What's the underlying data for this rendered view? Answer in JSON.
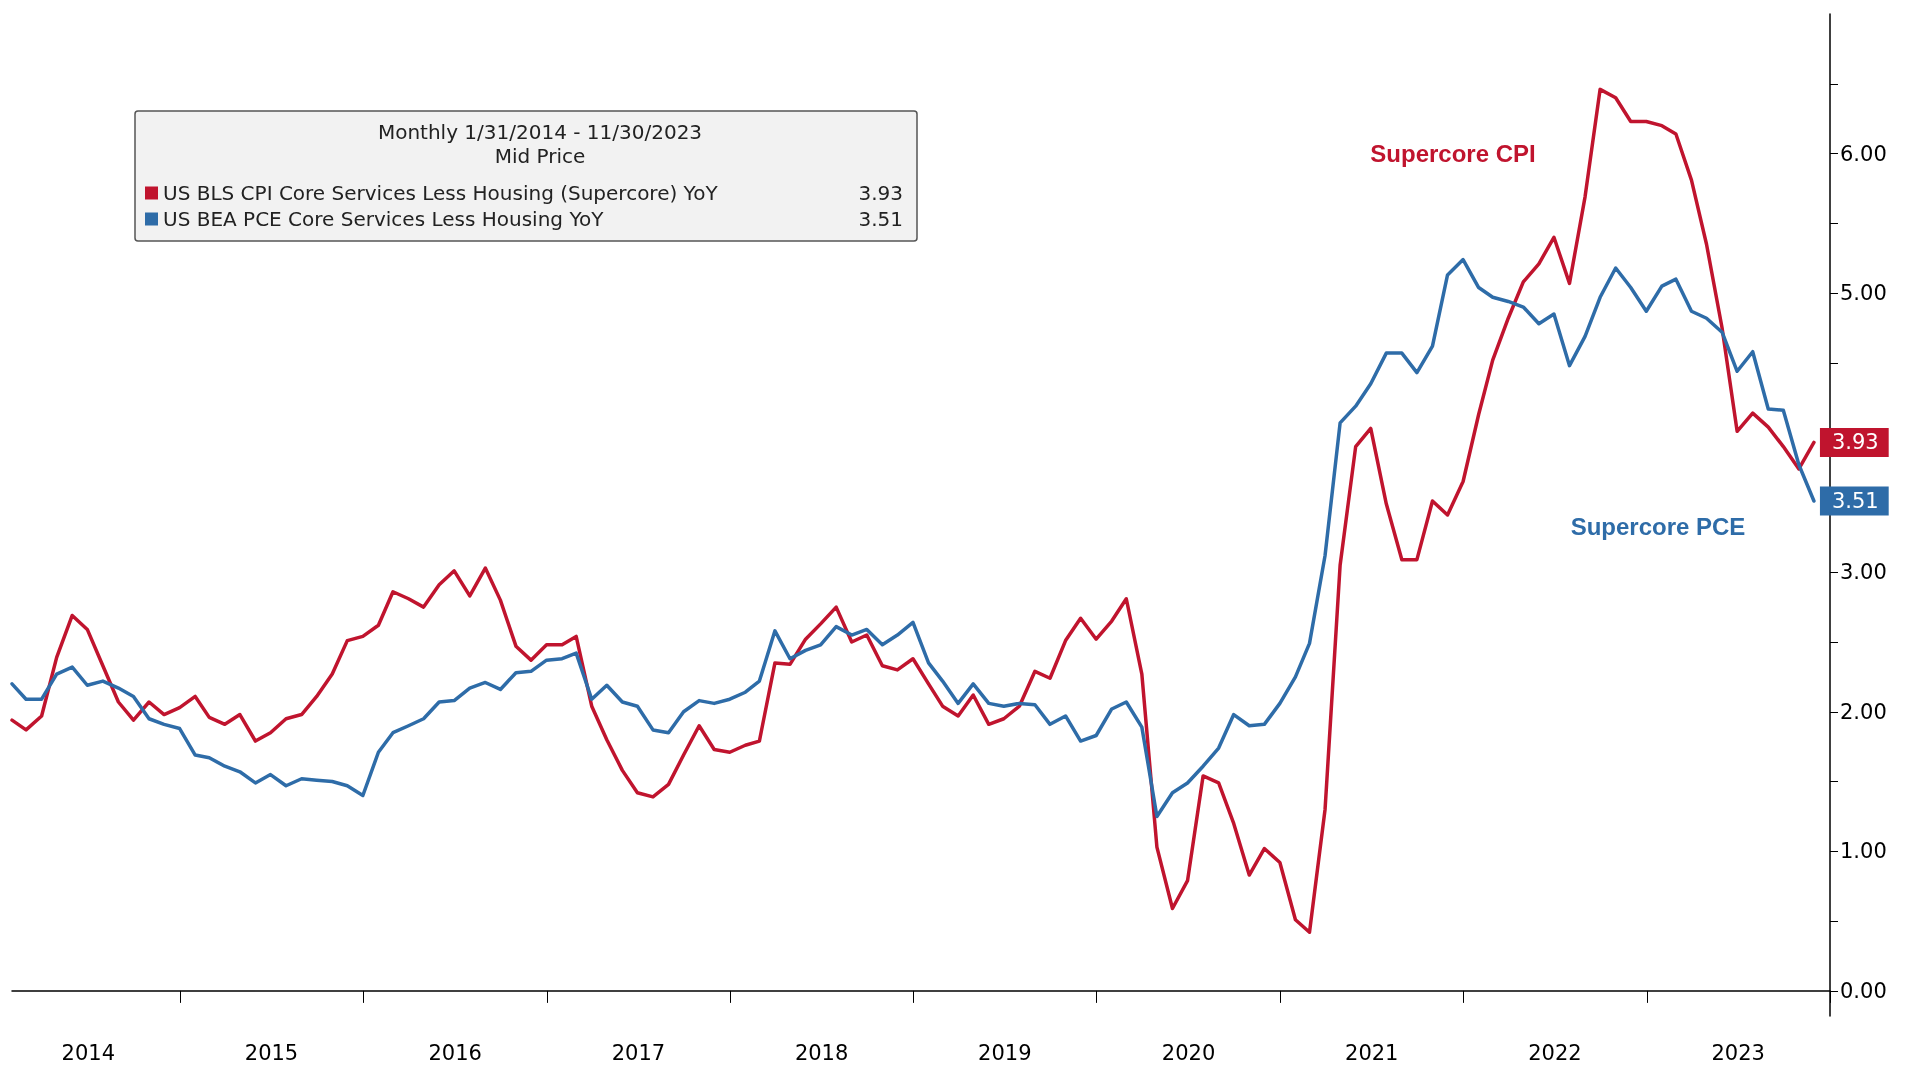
{
  "chart_data": {
    "type": "line",
    "legend_title": "Monthly 1/31/2014 - 11/30/2023",
    "subtitle": "Mid Price",
    "legend": "top left",
    "marker": "none",
    "x": [
      "2014-01-31",
      "2014-02-28",
      "2014-03-31",
      "2014-04-30",
      "2014-05-31",
      "2014-06-30",
      "2014-07-31",
      "2014-08-31",
      "2014-09-30",
      "2014-10-31",
      "2014-11-30",
      "2014-12-31",
      "2015-01-31",
      "2015-02-28",
      "2015-03-31",
      "2015-04-30",
      "2015-05-31",
      "2015-06-30",
      "2015-07-31",
      "2015-08-31",
      "2015-09-30",
      "2015-10-31",
      "2015-11-30",
      "2015-12-31",
      "2016-01-31",
      "2016-02-29",
      "2016-03-31",
      "2016-04-30",
      "2016-05-31",
      "2016-06-30",
      "2016-07-31",
      "2016-08-31",
      "2016-09-30",
      "2016-10-31",
      "2016-11-30",
      "2016-12-31",
      "2017-01-31",
      "2017-02-28",
      "2017-03-31",
      "2017-04-30",
      "2017-05-31",
      "2017-06-30",
      "2017-07-31",
      "2017-08-31",
      "2017-09-30",
      "2017-10-31",
      "2017-11-30",
      "2017-12-31",
      "2018-01-31",
      "2018-02-28",
      "2018-03-31",
      "2018-04-30",
      "2018-05-31",
      "2018-06-30",
      "2018-07-31",
      "2018-08-31",
      "2018-09-30",
      "2018-10-31",
      "2018-11-30",
      "2018-12-31",
      "2019-01-31",
      "2019-02-28",
      "2019-03-31",
      "2019-04-30",
      "2019-05-31",
      "2019-06-30",
      "2019-07-31",
      "2019-08-31",
      "2019-09-30",
      "2019-10-31",
      "2019-11-30",
      "2019-12-31",
      "2020-01-31",
      "2020-02-29",
      "2020-03-31",
      "2020-04-30",
      "2020-05-31",
      "2020-06-30",
      "2020-07-31",
      "2020-08-31",
      "2020-09-30",
      "2020-10-31",
      "2020-11-30",
      "2020-12-31",
      "2021-01-31",
      "2021-02-28",
      "2021-03-31",
      "2021-04-30",
      "2021-05-31",
      "2021-06-30",
      "2021-07-31",
      "2021-08-31",
      "2021-09-30",
      "2021-10-31",
      "2021-11-30",
      "2021-12-31",
      "2022-01-31",
      "2022-02-28",
      "2022-03-31",
      "2022-04-30",
      "2022-05-31",
      "2022-06-30",
      "2022-07-31",
      "2022-08-31",
      "2022-09-30",
      "2022-10-31",
      "2022-11-30",
      "2022-12-31",
      "2023-01-31",
      "2023-02-28",
      "2023-03-31",
      "2023-04-30",
      "2023-05-31",
      "2023-06-30",
      "2023-07-31",
      "2023-08-31",
      "2023-09-30",
      "2023-10-31",
      "2023-11-30"
    ],
    "series": [
      {
        "name": "US BLS CPI Core Services Less Housing (Supercore) YoY",
        "color": "#c0142e",
        "values": [
          1.94,
          1.87,
          1.97,
          2.39,
          2.69,
          2.59,
          2.33,
          2.07,
          1.94,
          2.07,
          1.98,
          2.03,
          2.11,
          1.96,
          1.91,
          1.98,
          1.79,
          1.85,
          1.95,
          1.98,
          2.11,
          2.27,
          2.51,
          2.54,
          2.62,
          2.86,
          2.81,
          2.75,
          2.91,
          3.01,
          2.83,
          3.03,
          2.8,
          2.47,
          2.37,
          2.48,
          2.48,
          2.54,
          2.04,
          1.8,
          1.58,
          1.42,
          1.39,
          1.48,
          1.69,
          1.9,
          1.73,
          1.71,
          1.76,
          1.79,
          2.35,
          2.34,
          2.52,
          2.63,
          2.75,
          2.5,
          2.55,
          2.33,
          2.3,
          2.38,
          2.2,
          2.04,
          1.97,
          2.12,
          1.91,
          1.95,
          2.04,
          2.29,
          2.24,
          2.51,
          2.67,
          2.52,
          2.65,
          2.81,
          2.27,
          1.03,
          0.59,
          0.79,
          1.54,
          1.49,
          1.2,
          0.83,
          1.02,
          0.92,
          0.51,
          0.42,
          1.3,
          3.05,
          3.9,
          4.03,
          3.49,
          3.09,
          3.09,
          3.51,
          3.41,
          3.65,
          4.13,
          4.52,
          4.82,
          5.08,
          5.21,
          5.4,
          5.07,
          5.69,
          6.46,
          6.4,
          6.23,
          6.23,
          6.2,
          6.14,
          5.81,
          5.35,
          4.75,
          4.01,
          4.14,
          4.04,
          3.9,
          3.74,
          3.93
        ],
        "value_labels": [
          null,
          null,
          null,
          null,
          null,
          null,
          null,
          null,
          null,
          null,
          null,
          null,
          null,
          null,
          null,
          null,
          null,
          null,
          null,
          null,
          null,
          null,
          null,
          null,
          null,
          null,
          null,
          null,
          null,
          null,
          null,
          null,
          null,
          null,
          null,
          null,
          null,
          null,
          null,
          null,
          null,
          null,
          null,
          null,
          null,
          null,
          null,
          null,
          null,
          null,
          null,
          null,
          null,
          null,
          null,
          null,
          null,
          null,
          null,
          null,
          null,
          null,
          null,
          null,
          null,
          null,
          null,
          null,
          null,
          null,
          null,
          null,
          null,
          null,
          null,
          null,
          null,
          null,
          null,
          null,
          null,
          null,
          null,
          null,
          null,
          null,
          null,
          null,
          null,
          null,
          null,
          null,
          null,
          null,
          null,
          null,
          null,
          null,
          null,
          null,
          null,
          null,
          null,
          null,
          null,
          null,
          null,
          null,
          null,
          null,
          null,
          null,
          null,
          null,
          null,
          null,
          null,
          null,
          "3.93"
        ]
      },
      {
        "name": "US BEA PCE Core Services Less Housing YoY",
        "color": "#2e6ca8",
        "values": [
          2.2,
          2.09,
          2.09,
          2.27,
          2.32,
          2.19,
          2.22,
          2.17,
          2.11,
          1.95,
          1.91,
          1.88,
          1.69,
          1.67,
          1.61,
          1.57,
          1.49,
          1.55,
          1.47,
          1.52,
          1.51,
          1.5,
          1.47,
          1.4,
          1.71,
          1.85,
          1.9,
          1.95,
          2.07,
          2.08,
          2.17,
          2.21,
          2.16,
          2.28,
          2.29,
          2.37,
          2.38,
          2.42,
          2.09,
          2.19,
          2.07,
          2.04,
          1.87,
          1.85,
          2.0,
          2.08,
          2.06,
          2.09,
          2.14,
          2.22,
          2.58,
          2.38,
          2.44,
          2.48,
          2.61,
          2.55,
          2.59,
          2.48,
          2.55,
          2.64,
          2.35,
          2.22,
          2.06,
          2.2,
          2.06,
          2.04,
          2.06,
          2.05,
          1.91,
          1.97,
          1.79,
          1.83,
          2.02,
          2.07,
          1.89,
          1.25,
          1.42,
          1.49,
          1.61,
          1.74,
          1.98,
          1.9,
          1.91,
          2.06,
          2.25,
          2.49,
          3.12,
          4.07,
          4.19,
          4.35,
          4.57,
          4.57,
          4.43,
          4.62,
          5.13,
          5.24,
          5.04,
          4.97,
          4.94,
          4.9,
          4.78,
          4.85,
          4.48,
          4.69,
          4.97,
          5.18,
          5.04,
          4.87,
          5.05,
          5.1,
          4.87,
          4.82,
          4.72,
          4.44,
          4.58,
          4.17,
          4.16,
          3.77,
          3.51
        ],
        "value_labels": [
          null,
          null,
          null,
          null,
          null,
          null,
          null,
          null,
          null,
          null,
          null,
          null,
          null,
          null,
          null,
          null,
          null,
          null,
          null,
          null,
          null,
          null,
          null,
          null,
          null,
          null,
          null,
          null,
          null,
          null,
          null,
          null,
          null,
          null,
          null,
          null,
          null,
          null,
          null,
          null,
          null,
          null,
          null,
          null,
          null,
          null,
          null,
          null,
          null,
          null,
          null,
          null,
          null,
          null,
          null,
          null,
          null,
          null,
          null,
          null,
          null,
          null,
          null,
          null,
          null,
          null,
          null,
          null,
          null,
          null,
          null,
          null,
          null,
          null,
          null,
          null,
          null,
          null,
          null,
          null,
          null,
          null,
          null,
          null,
          null,
          null,
          null,
          null,
          null,
          null,
          null,
          null,
          null,
          null,
          null,
          null,
          null,
          null,
          null,
          null,
          null,
          null,
          null,
          null,
          null,
          null,
          null,
          null,
          null,
          null,
          null,
          null,
          null,
          null,
          null,
          null,
          null,
          null,
          "3.51"
        ]
      }
    ],
    "annotations": [
      "Supercore CPI",
      "Supercore PCE"
    ],
    "xlim": [
      "2014-01-31",
      "2024-01-01"
    ],
    "xticks": [
      {
        "value": "2014-07-02",
        "label": "2014"
      },
      {
        "value": "2015-01-01",
        "label": null
      },
      {
        "value": "2015-07-02",
        "label": "2015"
      },
      {
        "value": "2016-01-01",
        "label": null
      },
      {
        "value": "2016-07-02",
        "label": "2016"
      },
      {
        "value": "2017-01-01",
        "label": null
      },
      {
        "value": "2017-07-02",
        "label": "2017"
      },
      {
        "value": "2018-01-01",
        "label": null
      },
      {
        "value": "2018-07-02",
        "label": "2018"
      },
      {
        "value": "2019-01-01",
        "label": null
      },
      {
        "value": "2019-07-02",
        "label": "2019"
      },
      {
        "value": "2020-01-01",
        "label": null
      },
      {
        "value": "2020-07-02",
        "label": "2020"
      },
      {
        "value": "2021-01-01",
        "label": null
      },
      {
        "value": "2021-07-02",
        "label": "2021"
      },
      {
        "value": "2022-01-01",
        "label": null
      },
      {
        "value": "2022-07-02",
        "label": "2022"
      },
      {
        "value": "2023-01-01",
        "label": null
      },
      {
        "value": "2023-07-02",
        "label": "2023"
      },
      {
        "value": "2024-01-01",
        "label": null
      }
    ],
    "ylim": [
      -0.18,
      7.0
    ],
    "yticks": [
      {
        "value": 0,
        "label": "0.00"
      },
      {
        "value": 0.5,
        "label": null
      },
      {
        "value": 1,
        "label": "1.00"
      },
      {
        "value": 1.5,
        "label": null
      },
      {
        "value": 2,
        "label": "2.00"
      },
      {
        "value": 2.5,
        "label": null
      },
      {
        "value": 3,
        "label": "3.00"
      },
      {
        "value": 3.5,
        "label": null
      },
      {
        "value": 4,
        "label": null
      },
      {
        "value": 4.5,
        "label": null
      },
      {
        "value": 5,
        "label": "5.00"
      },
      {
        "value": 5.5,
        "label": null
      },
      {
        "value": 6,
        "label": "6.00"
      },
      {
        "value": 6.5,
        "label": null
      }
    ]
  }
}
